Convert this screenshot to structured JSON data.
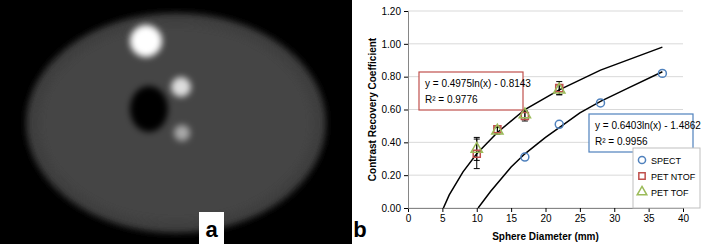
{
  "image_panel": {
    "label": "a"
  },
  "chart_data": {
    "type": "scatter",
    "panel_label": "b",
    "x_label": "Sphere Diameter (mm)",
    "y_label": "Contrast Recovery Coefficient",
    "xlim": [
      0,
      40
    ],
    "xticks": [
      0,
      5,
      10,
      15,
      20,
      25,
      30,
      35,
      40
    ],
    "ylim": [
      0,
      1.2
    ],
    "yticks": [
      {
        "value": 0,
        "label": "0.00"
      },
      {
        "value": 0.2,
        "label": "0.20"
      },
      {
        "value": 0.4,
        "label": "0.40"
      },
      {
        "value": 0.6,
        "label": "0.60"
      },
      {
        "value": 0.8,
        "label": "0.80"
      },
      {
        "value": 1.0,
        "label": "1.00"
      },
      {
        "value": 1.2,
        "label": "1.20"
      }
    ],
    "grid": true,
    "legend": "lower right",
    "series": [
      {
        "name": "SPECT",
        "type": "scatter",
        "marker": "circle",
        "color": "#4f81bd",
        "x": [
          17,
          22,
          28,
          37
        ],
        "values": [
          0.31,
          0.51,
          0.64,
          0.82
        ]
      },
      {
        "name": "PET NTOF",
        "type": "scatter",
        "marker": "square",
        "color": "#c0504d",
        "x": [
          10,
          13,
          17,
          22
        ],
        "values": [
          0.33,
          0.48,
          0.56,
          0.73
        ],
        "error": [
          0.09,
          0.02,
          0.03,
          0.04
        ]
      },
      {
        "name": "PET TOF",
        "type": "scatter",
        "marker": "triangle",
        "color": "#9bbb59",
        "x": [
          10,
          13,
          17,
          22
        ],
        "values": [
          0.36,
          0.47,
          0.57,
          0.72
        ],
        "error": [
          0.07,
          0.02,
          0.02,
          0.03
        ]
      },
      {
        "type": "line",
        "color": "#000000",
        "line_style": "solid",
        "x": [
          5.15,
          6,
          8,
          10,
          13,
          17,
          22,
          28,
          37
        ],
        "values": [
          0.0,
          0.08,
          0.22,
          0.33,
          0.46,
          0.6,
          0.72,
          0.84,
          0.98
        ]
      },
      {
        "type": "line",
        "color": "#000000",
        "line_style": "solid",
        "x": [
          10.2,
          12,
          15,
          17,
          20,
          22,
          25,
          28,
          32,
          37
        ],
        "values": [
          0.0,
          0.1,
          0.25,
          0.33,
          0.43,
          0.49,
          0.58,
          0.65,
          0.73,
          0.83
        ]
      }
    ],
    "annotations": [
      {
        "lines": [
          "y = 0.4975ln(x) - 0.8143",
          "R² = 0.9776"
        ],
        "color": "#c0504d"
      },
      {
        "lines": [
          "y = 0.6403ln(x) - 1.4862",
          "R² = 0.9956"
        ],
        "color": "#4f81bd"
      }
    ]
  }
}
